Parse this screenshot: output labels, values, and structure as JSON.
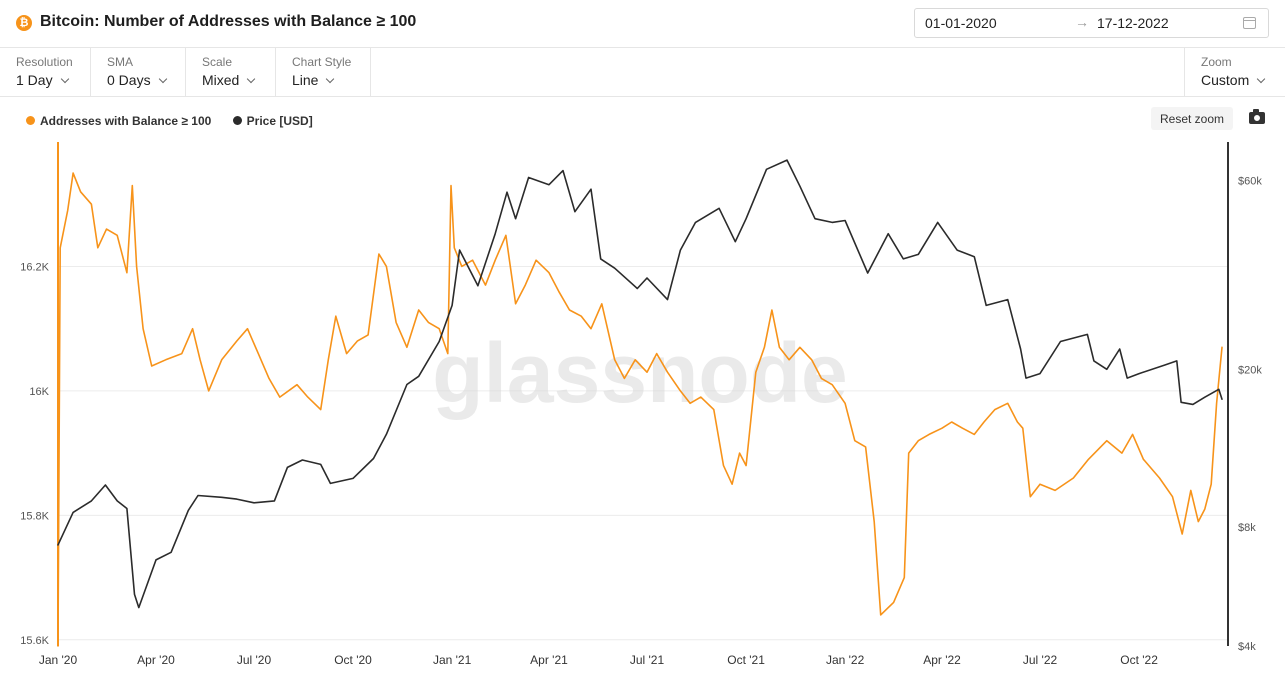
{
  "header": {
    "coin_symbol": "₿",
    "title": "Bitcoin: Number of Addresses with Balance ≥ 100",
    "date_start": "01-01-2020",
    "date_arrow": "→",
    "date_end": "17-12-2022"
  },
  "toolbar": {
    "resolution": {
      "label": "Resolution",
      "value": "1 Day"
    },
    "sma": {
      "label": "SMA",
      "value": "0 Days"
    },
    "scale": {
      "label": "Scale",
      "value": "Mixed"
    },
    "chart_style": {
      "label": "Chart Style",
      "value": "Line"
    },
    "zoom": {
      "label": "Zoom",
      "value": "Custom"
    }
  },
  "controls": {
    "reset_zoom_label": "Reset zoom"
  },
  "watermark": "glassnode",
  "colors": {
    "accent": "#f7931a",
    "price": "#2b2b2b",
    "grid": "#ececec"
  },
  "chart_data": {
    "type": "line",
    "title": "Bitcoin: Number of Addresses with Balance ≥ 100",
    "x_ticks": [
      "Jan '20",
      "Apr '20",
      "Jul '20",
      "Oct '20",
      "Jan '21",
      "Apr '21",
      "Jul '21",
      "Oct '21",
      "Jan '22",
      "Apr '22",
      "Jul '22",
      "Oct '22"
    ],
    "x_tick_dates": [
      "2020-01-01",
      "2020-04-01",
      "2020-07-01",
      "2020-10-01",
      "2021-01-01",
      "2021-04-01",
      "2021-07-01",
      "2021-10-01",
      "2022-01-01",
      "2022-04-01",
      "2022-07-01",
      "2022-10-01"
    ],
    "x_range": [
      "2020-01-01",
      "2022-12-17"
    ],
    "left_axis": {
      "ticks": [
        "16.2K",
        "16K",
        "15.8K",
        "15.6K"
      ],
      "tick_values": [
        16200,
        16000,
        15800,
        15600
      ],
      "range": [
        15590,
        16400
      ],
      "scale": "linear"
    },
    "right_axis": {
      "ticks": [
        "$60k",
        "$20k",
        "$8k",
        "$4k"
      ],
      "tick_values": [
        60000,
        20000,
        8000,
        4000
      ],
      "range": [
        4000,
        75000
      ],
      "scale": "log"
    },
    "grid": true,
    "legend_position": "top-left",
    "series": [
      {
        "name": "Addresses with Balance ≥ 100",
        "axis": "left",
        "color": "#f7931a",
        "points": [
          [
            "2020-01-01",
            15590
          ],
          [
            "2020-01-03",
            16230
          ],
          [
            "2020-01-10",
            16290
          ],
          [
            "2020-01-15",
            16350
          ],
          [
            "2020-01-22",
            16320
          ],
          [
            "2020-02-01",
            16300
          ],
          [
            "2020-02-07",
            16230
          ],
          [
            "2020-02-15",
            16260
          ],
          [
            "2020-02-25",
            16250
          ],
          [
            "2020-03-05",
            16190
          ],
          [
            "2020-03-10",
            16330
          ],
          [
            "2020-03-14",
            16200
          ],
          [
            "2020-03-20",
            16100
          ],
          [
            "2020-03-28",
            16040
          ],
          [
            "2020-04-10",
            16050
          ],
          [
            "2020-04-25",
            16060
          ],
          [
            "2020-05-05",
            16100
          ],
          [
            "2020-05-12",
            16050
          ],
          [
            "2020-05-20",
            16000
          ],
          [
            "2020-06-01",
            16050
          ],
          [
            "2020-06-15",
            16080
          ],
          [
            "2020-06-25",
            16100
          ],
          [
            "2020-07-05",
            16060
          ],
          [
            "2020-07-15",
            16020
          ],
          [
            "2020-07-25",
            15990
          ],
          [
            "2020-08-10",
            16010
          ],
          [
            "2020-08-20",
            15990
          ],
          [
            "2020-09-01",
            15970
          ],
          [
            "2020-09-08",
            16050
          ],
          [
            "2020-09-15",
            16120
          ],
          [
            "2020-09-25",
            16060
          ],
          [
            "2020-10-05",
            16080
          ],
          [
            "2020-10-15",
            16090
          ],
          [
            "2020-10-25",
            16220
          ],
          [
            "2020-11-01",
            16200
          ],
          [
            "2020-11-10",
            16110
          ],
          [
            "2020-11-20",
            16070
          ],
          [
            "2020-12-01",
            16130
          ],
          [
            "2020-12-10",
            16110
          ],
          [
            "2020-12-20",
            16100
          ],
          [
            "2020-12-28",
            16060
          ],
          [
            "2020-12-31",
            16330
          ],
          [
            "2021-01-03",
            16230
          ],
          [
            "2021-01-10",
            16200
          ],
          [
            "2021-01-20",
            16210
          ],
          [
            "2021-02-01",
            16170
          ],
          [
            "2021-02-10",
            16210
          ],
          [
            "2021-02-20",
            16250
          ],
          [
            "2021-03-01",
            16140
          ],
          [
            "2021-03-10",
            16170
          ],
          [
            "2021-03-20",
            16210
          ],
          [
            "2021-04-01",
            16190
          ],
          [
            "2021-04-10",
            16160
          ],
          [
            "2021-04-20",
            16130
          ],
          [
            "2021-05-01",
            16120
          ],
          [
            "2021-05-10",
            16100
          ],
          [
            "2021-05-20",
            16140
          ],
          [
            "2021-06-01",
            16050
          ],
          [
            "2021-06-10",
            16020
          ],
          [
            "2021-06-20",
            16050
          ],
          [
            "2021-07-01",
            16030
          ],
          [
            "2021-07-10",
            16060
          ],
          [
            "2021-07-20",
            16030
          ],
          [
            "2021-08-01",
            16000
          ],
          [
            "2021-08-10",
            15980
          ],
          [
            "2021-08-20",
            15990
          ],
          [
            "2021-09-01",
            15970
          ],
          [
            "2021-09-10",
            15880
          ],
          [
            "2021-09-18",
            15850
          ],
          [
            "2021-09-25",
            15900
          ],
          [
            "2021-10-01",
            15880
          ],
          [
            "2021-10-10",
            16030
          ],
          [
            "2021-10-18",
            16070
          ],
          [
            "2021-10-25",
            16130
          ],
          [
            "2021-11-01",
            16070
          ],
          [
            "2021-11-10",
            16050
          ],
          [
            "2021-11-20",
            16070
          ],
          [
            "2021-12-01",
            16050
          ],
          [
            "2021-12-10",
            16020
          ],
          [
            "2021-12-20",
            16010
          ],
          [
            "2022-01-01",
            15980
          ],
          [
            "2022-01-10",
            15920
          ],
          [
            "2022-01-20",
            15910
          ],
          [
            "2022-01-28",
            15790
          ],
          [
            "2022-02-03",
            15640
          ],
          [
            "2022-02-15",
            15660
          ],
          [
            "2022-02-25",
            15700
          ],
          [
            "2022-03-01",
            15900
          ],
          [
            "2022-03-10",
            15920
          ],
          [
            "2022-03-20",
            15930
          ],
          [
            "2022-04-01",
            15940
          ],
          [
            "2022-04-10",
            15950
          ],
          [
            "2022-04-20",
            15940
          ],
          [
            "2022-05-01",
            15930
          ],
          [
            "2022-05-10",
            15950
          ],
          [
            "2022-05-20",
            15970
          ],
          [
            "2022-06-01",
            15980
          ],
          [
            "2022-06-10",
            15950
          ],
          [
            "2022-06-15",
            15940
          ],
          [
            "2022-06-22",
            15830
          ],
          [
            "2022-07-01",
            15850
          ],
          [
            "2022-07-15",
            15840
          ],
          [
            "2022-08-01",
            15860
          ],
          [
            "2022-08-15",
            15890
          ],
          [
            "2022-09-01",
            15920
          ],
          [
            "2022-09-15",
            15900
          ],
          [
            "2022-09-25",
            15930
          ],
          [
            "2022-10-05",
            15890
          ],
          [
            "2022-10-20",
            15860
          ],
          [
            "2022-11-01",
            15830
          ],
          [
            "2022-11-10",
            15770
          ],
          [
            "2022-11-18",
            15840
          ],
          [
            "2022-11-25",
            15790
          ],
          [
            "2022-12-01",
            15810
          ],
          [
            "2022-12-07",
            15850
          ],
          [
            "2022-12-12",
            15980
          ],
          [
            "2022-12-17",
            16070
          ]
        ]
      },
      {
        "name": "Price [USD]",
        "axis": "right",
        "color": "#2b2b2b",
        "points": [
          [
            "2020-01-01",
            7200
          ],
          [
            "2020-01-15",
            8700
          ],
          [
            "2020-02-01",
            9300
          ],
          [
            "2020-02-14",
            10200
          ],
          [
            "2020-02-25",
            9300
          ],
          [
            "2020-03-05",
            8900
          ],
          [
            "2020-03-12",
            5400
          ],
          [
            "2020-03-16",
            5000
          ],
          [
            "2020-04-01",
            6600
          ],
          [
            "2020-04-15",
            6900
          ],
          [
            "2020-05-01",
            8800
          ],
          [
            "2020-05-10",
            9600
          ],
          [
            "2020-06-01",
            9500
          ],
          [
            "2020-06-15",
            9400
          ],
          [
            "2020-07-01",
            9200
          ],
          [
            "2020-07-20",
            9300
          ],
          [
            "2020-08-01",
            11300
          ],
          [
            "2020-08-15",
            11800
          ],
          [
            "2020-09-01",
            11500
          ],
          [
            "2020-09-10",
            10300
          ],
          [
            "2020-10-01",
            10600
          ],
          [
            "2020-10-20",
            11900
          ],
          [
            "2020-11-01",
            13700
          ],
          [
            "2020-11-20",
            18300
          ],
          [
            "2020-12-01",
            19200
          ],
          [
            "2020-12-20",
            23500
          ],
          [
            "2021-01-01",
            29000
          ],
          [
            "2021-01-08",
            40000
          ],
          [
            "2021-01-25",
            32500
          ],
          [
            "2021-02-10",
            44000
          ],
          [
            "2021-02-21",
            56000
          ],
          [
            "2021-03-01",
            48000
          ],
          [
            "2021-03-13",
            61000
          ],
          [
            "2021-04-01",
            58500
          ],
          [
            "2021-04-14",
            63500
          ],
          [
            "2021-04-25",
            50000
          ],
          [
            "2021-05-10",
            57000
          ],
          [
            "2021-05-19",
            38000
          ],
          [
            "2021-06-01",
            36000
          ],
          [
            "2021-06-22",
            32000
          ],
          [
            "2021-07-01",
            34000
          ],
          [
            "2021-07-20",
            30000
          ],
          [
            "2021-08-01",
            40000
          ],
          [
            "2021-08-15",
            47000
          ],
          [
            "2021-09-06",
            51000
          ],
          [
            "2021-09-21",
            42000
          ],
          [
            "2021-10-01",
            48000
          ],
          [
            "2021-10-20",
            64000
          ],
          [
            "2021-11-08",
            67500
          ],
          [
            "2021-11-20",
            58000
          ],
          [
            "2021-12-04",
            48000
          ],
          [
            "2021-12-20",
            47000
          ],
          [
            "2022-01-01",
            47500
          ],
          [
            "2022-01-22",
            35000
          ],
          [
            "2022-02-10",
            44000
          ],
          [
            "2022-02-24",
            38000
          ],
          [
            "2022-03-10",
            39000
          ],
          [
            "2022-03-28",
            47000
          ],
          [
            "2022-04-15",
            40000
          ],
          [
            "2022-05-01",
            38500
          ],
          [
            "2022-05-12",
            29000
          ],
          [
            "2022-06-01",
            30000
          ],
          [
            "2022-06-13",
            22500
          ],
          [
            "2022-06-18",
            19000
          ],
          [
            "2022-07-01",
            19500
          ],
          [
            "2022-07-20",
            23500
          ],
          [
            "2022-08-14",
            24500
          ],
          [
            "2022-08-20",
            21000
          ],
          [
            "2022-09-01",
            20000
          ],
          [
            "2022-09-13",
            22500
          ],
          [
            "2022-09-20",
            19000
          ],
          [
            "2022-10-01",
            19500
          ],
          [
            "2022-10-25",
            20500
          ],
          [
            "2022-11-05",
            21000
          ],
          [
            "2022-11-09",
            16500
          ],
          [
            "2022-11-20",
            16300
          ],
          [
            "2022-12-01",
            17000
          ],
          [
            "2022-12-14",
            17800
          ],
          [
            "2022-12-17",
            16800
          ]
        ]
      }
    ]
  }
}
